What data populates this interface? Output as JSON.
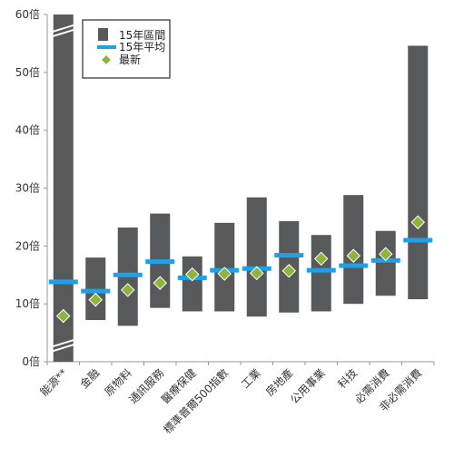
{
  "chart_data": {
    "type": "range-bar",
    "title": "",
    "xlabel": "",
    "ylabel": "",
    "ylim": [
      0,
      60
    ],
    "y_ticks": [
      "0倍",
      "10倍",
      "20倍",
      "30倍",
      "40倍",
      "50倍",
      "60倍"
    ],
    "y_tick_values": [
      0,
      10,
      20,
      30,
      40,
      50,
      60
    ],
    "grid": false,
    "legend_position": "top-left",
    "legend": {
      "range": "15年區間",
      "average": "15年平均",
      "latest": "最新"
    },
    "colors": {
      "range": "#58595b",
      "average": "#1ea1e8",
      "latest": "#8db43d",
      "latest_edge": "#ffffff",
      "axis": "#9a9a9a"
    },
    "categories": [
      "能源**",
      "金融",
      "原物料",
      "通訊服務",
      "醫療保健",
      "標準普爾500指數",
      "工業",
      "房地產",
      "公用事業",
      "科技",
      "必需消費",
      "非必需消費"
    ],
    "series": [
      {
        "name": "15年區間",
        "low": [
          0,
          7.2,
          6.2,
          9.3,
          8.7,
          8.7,
          7.8,
          8.5,
          8.7,
          10.0,
          11.4,
          10.8
        ],
        "high": [
          60,
          18.0,
          23.2,
          25.6,
          18.2,
          24.0,
          28.4,
          24.3,
          21.9,
          28.8,
          22.6,
          54.6
        ]
      },
      {
        "name": "15年平均",
        "values": [
          13.8,
          12.2,
          15.0,
          17.3,
          14.5,
          15.8,
          16.1,
          18.4,
          15.8,
          16.6,
          17.5,
          21.0
        ]
      },
      {
        "name": "最新",
        "values": [
          7.9,
          10.7,
          12.4,
          13.6,
          15.1,
          15.2,
          15.3,
          15.7,
          17.8,
          18.3,
          18.6,
          24.1
        ]
      }
    ],
    "axis_break_category": "能源**"
  }
}
